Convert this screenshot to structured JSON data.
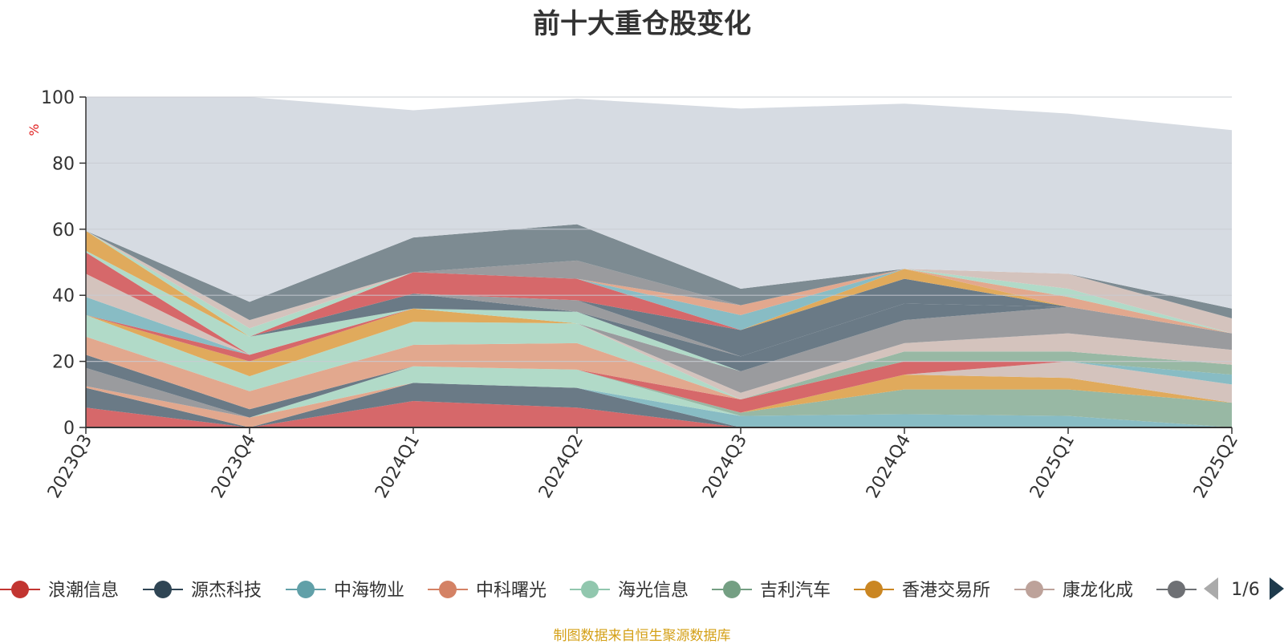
{
  "title": "前十大重仓股变化",
  "source_note": "制图数据来自恒生聚源数据库",
  "legend_page": "1/6",
  "colors": {
    "background_area": "#d6dbe2",
    "grid": "#c9ccd3",
    "axis": "#333333",
    "unit": "#e02020",
    "source": "#d4a017",
    "pager_active": "#1e3a4c",
    "pager_inactive": "#aaaaaa"
  },
  "chart_data": {
    "type": "area",
    "stacked": true,
    "categories": [
      "2023Q3",
      "2023Q4",
      "2024Q1",
      "2024Q2",
      "2024Q3",
      "2024Q4",
      "2025Q1",
      "2025Q2"
    ],
    "ylabel": "%",
    "ylim": [
      0,
      100
    ],
    "yticks": [
      0,
      20,
      40,
      60,
      80,
      100
    ],
    "grid": true,
    "legend_position": "bottom",
    "legend": [
      {
        "name": "浪潮信息",
        "color": "#c23531"
      },
      {
        "name": "源杰科技",
        "color": "#2f4554"
      },
      {
        "name": "中海物业",
        "color": "#61a0a8"
      },
      {
        "name": "中科曙光",
        "color": "#d48265"
      },
      {
        "name": "海光信息",
        "color": "#91c7ae"
      },
      {
        "name": "吉利汽车",
        "color": "#749f83"
      },
      {
        "name": "香港交易所",
        "color": "#ca8622"
      },
      {
        "name": "康龙化成",
        "color": "#bda29a"
      },
      {
        "name": "",
        "color": "#6e7074"
      }
    ],
    "series": [
      {
        "color": "#d6686a",
        "values": [
          6,
          0,
          8,
          6,
          0,
          0,
          0,
          0
        ]
      },
      {
        "color": "#6a7a86",
        "values": [
          6,
          0,
          5.5,
          6,
          0,
          0,
          0,
          0
        ]
      },
      {
        "color": "#88bcc4",
        "values": [
          0,
          0,
          0,
          0,
          3.5,
          4,
          3.5,
          0
        ]
      },
      {
        "color": "#e2a88e",
        "values": [
          0.5,
          3,
          0,
          0,
          0,
          0,
          0,
          0
        ]
      },
      {
        "color": "#b1dac8",
        "values": [
          0,
          0,
          5,
          5.5,
          0,
          0,
          0,
          0
        ]
      },
      {
        "color": "#98b8a4",
        "values": [
          0,
          0,
          0,
          0,
          1,
          7.5,
          8,
          7.5
        ]
      },
      {
        "color": "#e0aa5c",
        "values": [
          0,
          0,
          0,
          0,
          0,
          4.5,
          3.5,
          0
        ]
      },
      {
        "color": "#d4c3bd",
        "values": [
          0,
          0,
          0,
          0,
          0,
          0,
          5,
          5.5
        ]
      },
      {
        "color": "#9a9b9e",
        "values": [
          5.5,
          0,
          0,
          0,
          0,
          0,
          0,
          0
        ]
      },
      {
        "color": "#6a7a86",
        "values": [
          4,
          2.5,
          0,
          0,
          0,
          0,
          0,
          0
        ]
      },
      {
        "color": "#d6686a",
        "values": [
          0,
          0,
          0,
          0,
          4,
          4,
          0,
          0
        ]
      },
      {
        "color": "#88bcc4",
        "values": [
          0,
          0,
          0,
          0,
          0,
          0,
          0,
          3
        ]
      },
      {
        "color": "#e2a88e",
        "values": [
          5.5,
          5.5,
          6.5,
          8,
          0,
          0,
          0,
          0
        ]
      },
      {
        "color": "#b1dac8",
        "values": [
          6.5,
          4.5,
          7,
          6,
          0,
          0,
          0,
          0
        ]
      },
      {
        "color": "#98b8a4",
        "values": [
          0,
          0,
          0,
          0,
          0,
          3,
          3,
          3
        ]
      },
      {
        "color": "#d4c3bd",
        "values": [
          0,
          0,
          0,
          0,
          2,
          2.5,
          5.5,
          4.5
        ]
      },
      {
        "color": "#e0aa5c",
        "values": [
          0,
          4.5,
          4,
          0,
          0,
          0,
          0,
          0
        ]
      },
      {
        "color": "#d6686a",
        "values": [
          0,
          2,
          0,
          0,
          0,
          0,
          0,
          0
        ]
      },
      {
        "color": "#88bcc4",
        "values": [
          5.5,
          0,
          0,
          0,
          0,
          0,
          0,
          0
        ]
      },
      {
        "color": "#9a9b9e",
        "values": [
          0,
          0,
          0,
          0,
          6.5,
          7,
          8,
          5
        ]
      },
      {
        "color": "#d4c3bd",
        "values": [
          7,
          0,
          0,
          0,
          0,
          0,
          0,
          0
        ]
      },
      {
        "color": "#d6686a",
        "values": [
          6.5,
          0,
          0,
          0,
          0,
          0,
          0,
          0
        ]
      },
      {
        "color": "#b1dac8",
        "values": [
          0.5,
          5.5,
          0,
          3.5,
          0,
          0,
          0,
          0
        ]
      },
      {
        "color": "#6a7a86",
        "values": [
          0,
          0,
          4.5,
          0,
          4.5,
          5,
          0,
          0
        ]
      },
      {
        "color": "#9a9b9e",
        "values": [
          0,
          0,
          0,
          3.5,
          0,
          0,
          0,
          0
        ]
      },
      {
        "color": "#6a7a86",
        "values": [
          0,
          0,
          0,
          0,
          8,
          7.5,
          0,
          0
        ]
      },
      {
        "color": "#e0aa5c",
        "values": [
          6,
          0,
          0,
          0,
          0,
          3,
          0,
          0
        ]
      },
      {
        "color": "#d6686a",
        "values": [
          0,
          0,
          6.5,
          6.5,
          0,
          0,
          0,
          0
        ]
      },
      {
        "color": "#88bcc4",
        "values": [
          0,
          0,
          0,
          0,
          4.5,
          0,
          0,
          0
        ]
      },
      {
        "color": "#e2a88e",
        "values": [
          0,
          0,
          0,
          0,
          3,
          0,
          3,
          0
        ]
      },
      {
        "color": "#b1dac8",
        "values": [
          0,
          2.5,
          0,
          0,
          0,
          0,
          2.5,
          0
        ]
      },
      {
        "color": "#d4c3bd",
        "values": [
          0,
          2.5,
          0,
          0,
          0,
          0,
          4.5,
          4.5
        ]
      },
      {
        "color": "#9a9b9e",
        "values": [
          0,
          0,
          0,
          5.5,
          0,
          0,
          0,
          0
        ]
      },
      {
        "color": "#7d8b92",
        "values": [
          0,
          5.5,
          10.5,
          11,
          5,
          0,
          0,
          3
        ]
      },
      {
        "color": "#d6dbe2",
        "values": [
          40.5,
          62,
          38.5,
          38,
          54.5,
          50,
          48.5,
          54
        ]
      }
    ]
  }
}
